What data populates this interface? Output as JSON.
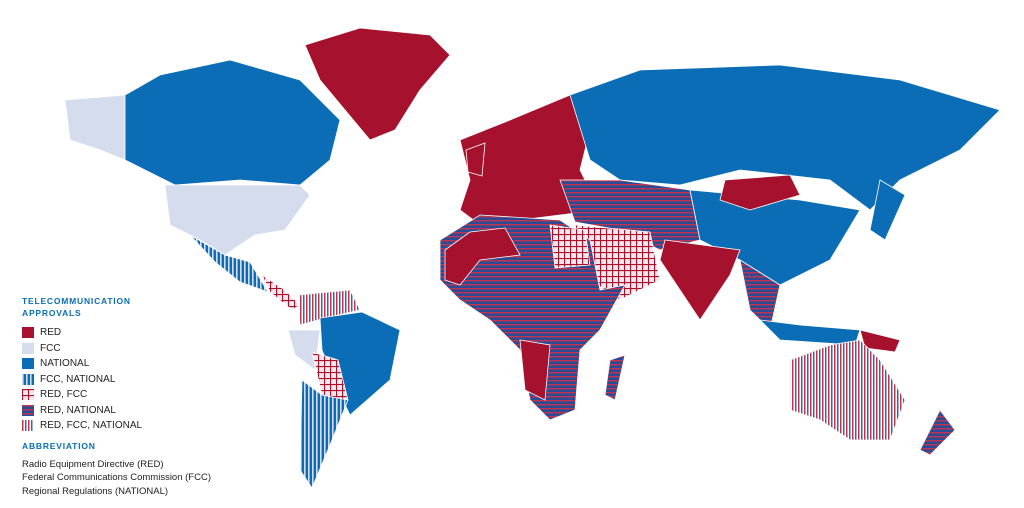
{
  "legend": {
    "title": "TELECOMMUNICATION APPROVALS",
    "items": [
      "RED",
      "FCC",
      "NATIONAL",
      "FCC, NATIONAL",
      "RED, FCC",
      "RED, NATIONAL",
      "RED, FCC, NATIONAL"
    ]
  },
  "abbreviation": {
    "title": "ABBREVIATION",
    "lines": [
      "Radio Equipment Directive (RED)",
      "Federal Communications Commission (FCC)",
      "Regional Regulations (NATIONAL)"
    ]
  }
}
